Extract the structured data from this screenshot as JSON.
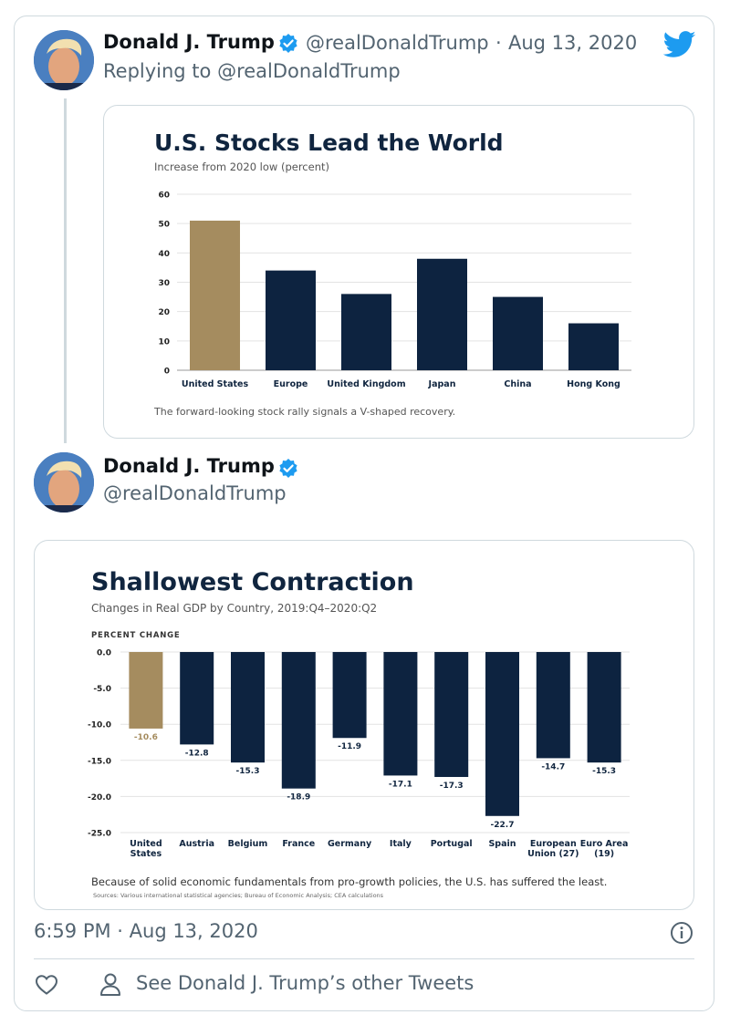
{
  "tweet1": {
    "author": "Donald J. Trump",
    "handle": "@realDonaldTrump",
    "separator": "·",
    "date": "Aug 13, 2020",
    "replying": "Replying to @realDonaldTrump",
    "avatar_icon": "avatar-photo",
    "verified_icon": "verified-badge-icon",
    "brand_icon": "twitter-bird-icon",
    "brand_color": "#1d9bf0"
  },
  "tweet2": {
    "author": "Donald J. Trump",
    "handle": "@realDonaldTrump",
    "time": "6:59 PM · Aug 13, 2020",
    "footer_link": "See Donald J. Trump’s other Tweets",
    "icons": [
      "heart-icon",
      "person-icon",
      "info-icon"
    ]
  },
  "colors": {
    "us_bar": "#a58c5f",
    "other_bar": "#0d2340",
    "text_secondary": "#536471",
    "border": "#cfd9de"
  },
  "chart_data": [
    {
      "type": "bar",
      "title": "U.S. Stocks Lead the World",
      "subtitle": "Increase from 2020 low (percent)",
      "categories": [
        "United States",
        "Europe",
        "United Kingdom",
        "Japan",
        "China",
        "Hong Kong"
      ],
      "values": [
        51,
        34,
        26,
        38,
        25,
        16
      ],
      "ylim": [
        0,
        60
      ],
      "yticks": [
        0,
        10,
        20,
        30,
        40,
        50,
        60
      ],
      "grid": true,
      "highlight_index": 0,
      "caption": "The forward-looking stock rally signals a V-shaped recovery."
    },
    {
      "type": "bar",
      "title": "Shallowest Contraction",
      "subtitle": "Changes in Real GDP by Country, 2019:Q4–2020:Q2",
      "ylabel": "PERCENT CHANGE",
      "categories": [
        [
          "United",
          "States"
        ],
        [
          "Austria"
        ],
        [
          "Belgium"
        ],
        [
          "France"
        ],
        [
          "Germany"
        ],
        [
          "Italy"
        ],
        [
          "Portugal"
        ],
        [
          "Spain"
        ],
        [
          "European",
          "Union (27)"
        ],
        [
          "Euro Area",
          "(19)"
        ]
      ],
      "values": [
        -10.6,
        -12.8,
        -15.3,
        -18.9,
        -11.9,
        -17.1,
        -17.3,
        -22.7,
        -14.7,
        -15.3
      ],
      "value_labels": [
        "-10.6",
        "-12.8",
        "-15.3",
        "-18.9",
        "-11.9",
        "-17.1",
        "-17.3",
        "-22.7",
        "-14.7",
        "-15.3"
      ],
      "ylim": [
        -25,
        0
      ],
      "yticks": [
        0,
        -5,
        -10,
        -15,
        -20,
        -25
      ],
      "ytick_labels": [
        "0.0",
        "-5.0",
        "-10.0",
        "-15.0",
        "-20.0",
        "-25.0"
      ],
      "grid": true,
      "highlight_index": 0,
      "caption": "Because of solid economic fundamentals from pro-growth policies, the U.S. has suffered the least.",
      "sources": "Sources: Various international statistical agencies; Bureau of Economic Analysis; CEA calculations"
    }
  ]
}
